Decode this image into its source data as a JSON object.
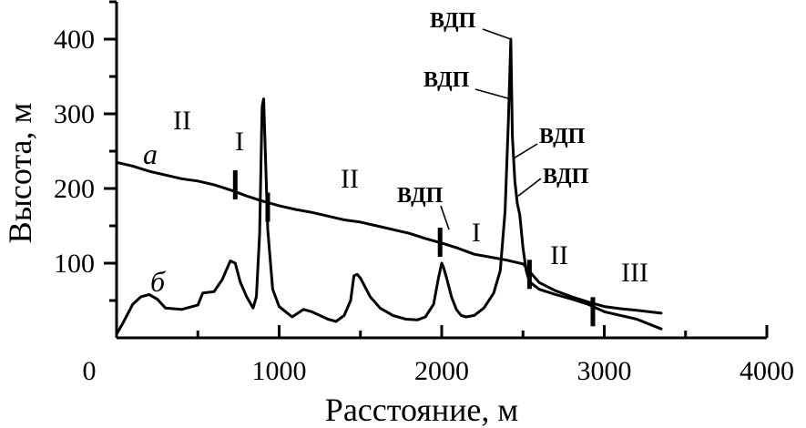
{
  "chart_data": {
    "type": "line",
    "title": "",
    "xlabel": "Расстояние, м",
    "ylabel": "Высота, м",
    "xlim": [
      0,
      4000
    ],
    "ylim": [
      0,
      450
    ],
    "x_ticks": [
      0,
      1000,
      2000,
      3000,
      4000
    ],
    "x_tick_labels": [
      "0",
      "1000",
      "2000",
      "3000",
      "4000"
    ],
    "x_minor_ticks": [
      500,
      1500,
      2500,
      3500
    ],
    "y_ticks": [
      100,
      200,
      300,
      400
    ],
    "y_tick_labels": [
      "100",
      "200",
      "300",
      "400"
    ],
    "y_minor_ticks": [
      50,
      150,
      250,
      350,
      450
    ],
    "grid": false,
    "legend": "none",
    "line_color": "#000000",
    "series": [
      {
        "name": "а",
        "x": [
          0,
          100,
          200,
          300,
          400,
          500,
          600,
          700,
          800,
          900,
          1000,
          1100,
          1200,
          1300,
          1400,
          1500,
          1600,
          1700,
          1800,
          1900,
          2000,
          2100,
          2200,
          2300,
          2400,
          2500,
          2600,
          2700,
          2800,
          2900,
          3000,
          3100,
          3200,
          3350
        ],
        "y": [
          235,
          230,
          223,
          218,
          213,
          210,
          205,
          198,
          190,
          183,
          177,
          172,
          168,
          163,
          158,
          155,
          150,
          145,
          140,
          133,
          127,
          120,
          112,
          108,
          104,
          99,
          74,
          63,
          55,
          48,
          42,
          39,
          37,
          33
        ]
      },
      {
        "name": "б",
        "x": [
          0,
          40,
          100,
          150,
          200,
          250,
          300,
          400,
          500,
          530,
          600,
          650,
          700,
          730,
          760,
          800,
          840,
          860,
          880,
          895,
          905,
          915,
          930,
          960,
          1000,
          1040,
          1080,
          1150,
          1200,
          1250,
          1300,
          1350,
          1400,
          1440,
          1460,
          1480,
          1500,
          1560,
          1620,
          1700,
          1780,
          1850,
          1900,
          1950,
          1980,
          2000,
          2010,
          2030,
          2060,
          2090,
          2120,
          2150,
          2200,
          2260,
          2320,
          2360,
          2390,
          2410,
          2425,
          2435,
          2450,
          2465,
          2480,
          2500,
          2520,
          2540,
          2600,
          2700,
          2800,
          2900,
          3000,
          3100,
          3200,
          3350
        ],
        "y": [
          5,
          20,
          45,
          55,
          58,
          52,
          40,
          38,
          44,
          60,
          62,
          78,
          103,
          100,
          75,
          55,
          40,
          55,
          140,
          310,
          320,
          250,
          145,
          65,
          42,
          35,
          28,
          38,
          35,
          30,
          25,
          22,
          30,
          50,
          83,
          85,
          80,
          55,
          40,
          30,
          25,
          24,
          28,
          45,
          80,
          100,
          95,
          80,
          55,
          38,
          30,
          28,
          30,
          40,
          60,
          90,
          170,
          290,
          400,
          270,
          210,
          180,
          165,
          120,
          90,
          75,
          65,
          58,
          52,
          45,
          35,
          30,
          25,
          12
        ]
      }
    ],
    "annotations": {
      "curve_label_a": "а",
      "curve_label_b": "б",
      "zone_II_1": "II",
      "zone_I_1": "I",
      "zone_II_2": "II",
      "zone_I_2": "I",
      "zone_II_3": "II",
      "zone_III": "III",
      "vdp_1": "ВДП",
      "vdp_2": "ВДП",
      "vdp_3": "ВДП",
      "vdp_4": "ВДП",
      "vdp_5": "ВДП"
    },
    "boundary_markers": [
      {
        "x": 730,
        "y": 205
      },
      {
        "x": 930,
        "y": 175
      },
      {
        "x": 1990,
        "y": 128
      },
      {
        "x": 2540,
        "y": 85
      },
      {
        "x": 2930,
        "y": 35
      }
    ]
  }
}
